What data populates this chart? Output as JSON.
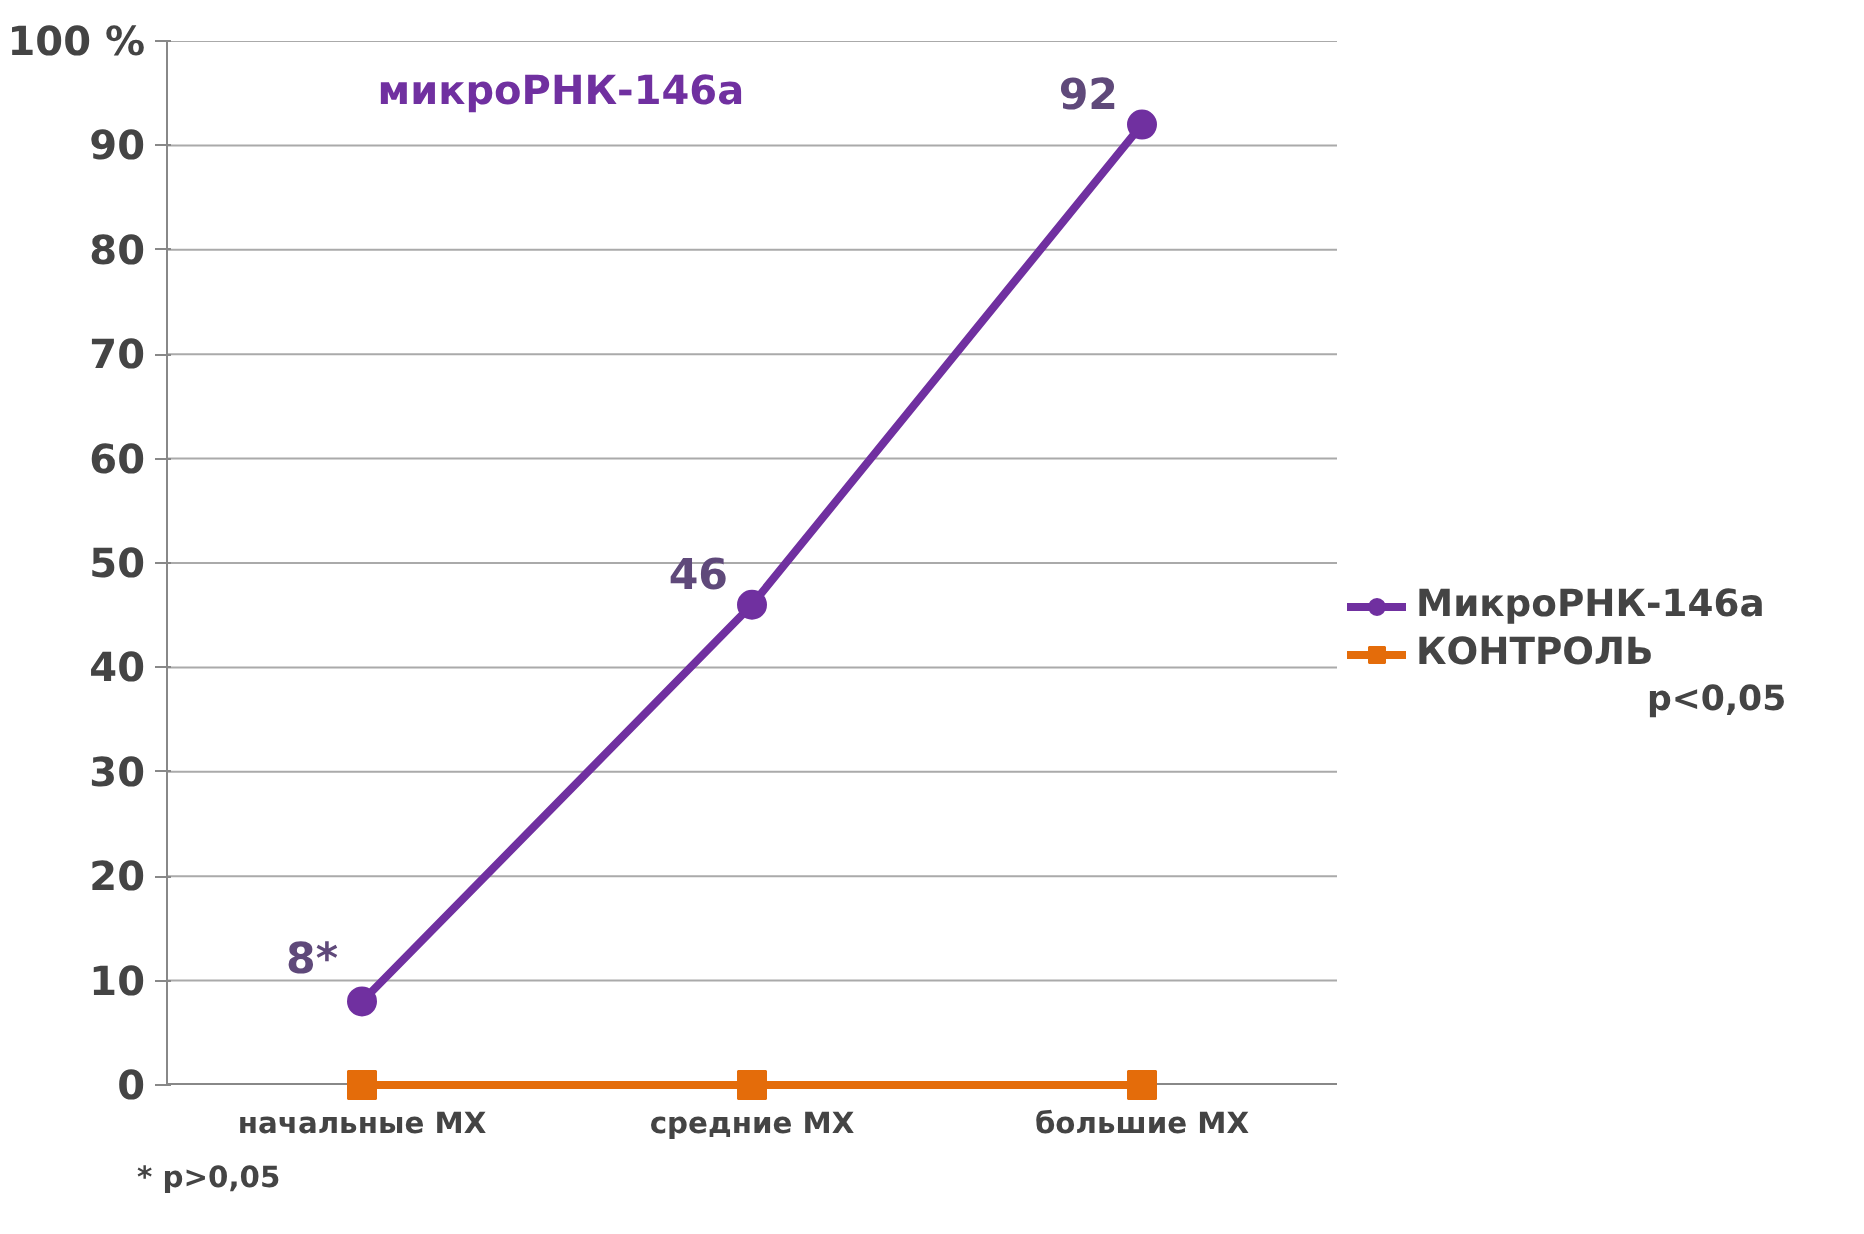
{
  "chart_data": {
    "type": "line",
    "title": "микроРНК-146а",
    "categories": [
      "начальные МХ",
      "средние МХ",
      "большие МХ"
    ],
    "series": [
      {
        "name": "МикроРНК-146а",
        "color": "#7030a0",
        "values": [
          8,
          46,
          92
        ],
        "value_labels": [
          "8*",
          "46",
          "92"
        ],
        "marker": "circle"
      },
      {
        "name": "КОНТРОЛЬ",
        "color": "#e46c0a",
        "values": [
          0,
          0,
          0
        ],
        "marker": "square"
      }
    ],
    "ylim": [
      0,
      100
    ],
    "yticks": [
      0,
      10,
      20,
      30,
      40,
      50,
      60,
      70,
      80,
      90,
      {
        "value": 100,
        "label": "100 %"
      }
    ],
    "grid": "y",
    "legend": "right",
    "line_style": "solid",
    "annotations": [
      "p<0,05",
      "* p>0,05"
    ]
  }
}
